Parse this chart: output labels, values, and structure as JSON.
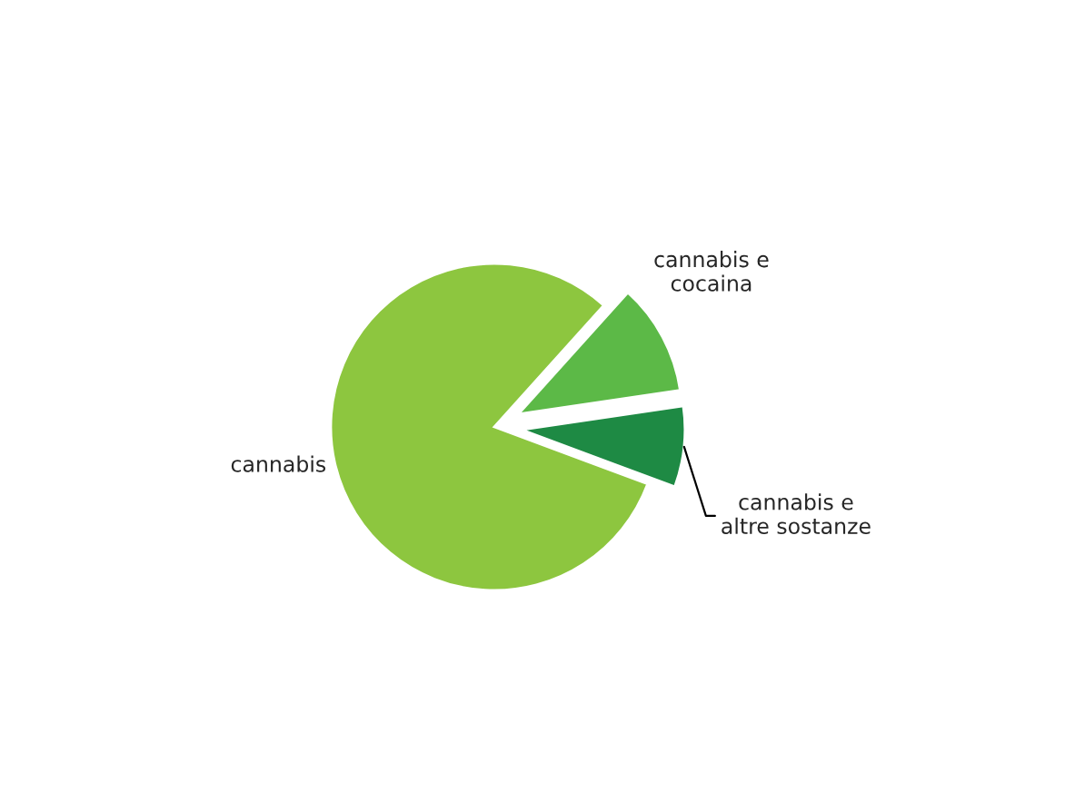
{
  "chart_data": {
    "type": "pie",
    "categories": [
      "cannabis",
      "cannabis e\naltre sostanze",
      "cannabis e\ncocaina"
    ],
    "values": [
      81,
      8,
      11
    ],
    "colors": [
      "#8dc63f",
      "#1e8a44",
      "#5cb947"
    ]
  }
}
